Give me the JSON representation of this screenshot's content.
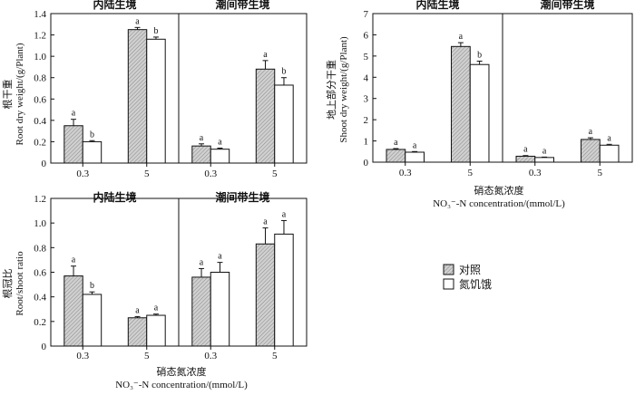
{
  "chart_data": [
    {
      "id": "root",
      "type": "bar",
      "sections": [
        "内陆生境",
        "潮间带生境"
      ],
      "categories": [
        "0.3",
        "5",
        "0.3",
        "5"
      ],
      "ylabel_cn": "根干重",
      "ylabel_en": "Root dry weight/(g/Plant)",
      "xlabel_cn": "",
      "xlabel_en": "",
      "ylim": [
        0,
        1.4
      ],
      "yticks": [
        "0",
        "0.2",
        "0.4",
        "0.6",
        "0.8",
        "1.0",
        "1.2",
        "1.4"
      ],
      "series": [
        {
          "name": "对照",
          "values": [
            0.35,
            1.25,
            0.16,
            0.88
          ],
          "errors": [
            0.06,
            0.02,
            0.02,
            0.08
          ],
          "sig": [
            "a",
            "a",
            "a",
            "a"
          ]
        },
        {
          "name": "氮饥饿",
          "values": [
            0.2,
            1.16,
            0.13,
            0.73
          ],
          "errors": [
            0.01,
            0.02,
            0.01,
            0.07
          ],
          "sig": [
            "b",
            "b",
            "a",
            "b"
          ]
        }
      ]
    },
    {
      "id": "shoot",
      "type": "bar",
      "sections": [
        "内陆生境",
        "潮间带生境"
      ],
      "categories": [
        "0.3",
        "5",
        "0.3",
        "5"
      ],
      "ylabel_cn": "地上部分干重",
      "ylabel_en": "Shoot dry weight/(g/Plant)",
      "xlabel_cn": "硝态氮浓度",
      "xlabel_en": "NO₃⁻-N concentration/(mmol/L)",
      "ylim": [
        0,
        7
      ],
      "yticks": [
        "0",
        "1",
        "2",
        "3",
        "4",
        "5",
        "6",
        "7"
      ],
      "series": [
        {
          "name": "对照",
          "values": [
            0.6,
            5.45,
            0.28,
            1.07
          ],
          "errors": [
            0.04,
            0.18,
            0.03,
            0.08
          ],
          "sig": [
            "a",
            "a",
            "a",
            "a"
          ]
        },
        {
          "name": "氮饥饿",
          "values": [
            0.47,
            4.6,
            0.22,
            0.8
          ],
          "errors": [
            0.03,
            0.16,
            0.02,
            0.04
          ],
          "sig": [
            "a",
            "b",
            "a",
            "a"
          ]
        }
      ]
    },
    {
      "id": "ratio",
      "type": "bar",
      "sections": [
        "内陆生境",
        "潮间带生境"
      ],
      "categories": [
        "0.3",
        "5",
        "0.3",
        "5"
      ],
      "ylabel_cn": "根冠比",
      "ylabel_en": "Root/shoot ratio",
      "xlabel_cn": "硝态氮浓度",
      "xlabel_en": "NO₃⁻-N concentration/(mmol/L)",
      "ylim": [
        0,
        1.2
      ],
      "yticks": [
        "0",
        "0.2",
        "0.4",
        "0.6",
        "0.8",
        "1.0",
        "1.2"
      ],
      "series": [
        {
          "name": "对照",
          "values": [
            0.57,
            0.23,
            0.56,
            0.83
          ],
          "errors": [
            0.08,
            0.01,
            0.07,
            0.13
          ],
          "sig": [
            "a",
            "a",
            "a",
            "a"
          ]
        },
        {
          "name": "氮饥饿",
          "values": [
            0.42,
            0.25,
            0.6,
            0.91
          ],
          "errors": [
            0.02,
            0.01,
            0.08,
            0.11
          ],
          "sig": [
            "b",
            "a",
            "a",
            "a"
          ]
        }
      ]
    }
  ],
  "legend": {
    "items": [
      {
        "label": "对照",
        "fill": "hatched-gray"
      },
      {
        "label": "氮饥饿",
        "fill": "white"
      }
    ],
    "position": "right-middle"
  },
  "colors": {
    "control": "#c8c8c8",
    "starved": "#ffffff",
    "stroke": "#111111"
  }
}
